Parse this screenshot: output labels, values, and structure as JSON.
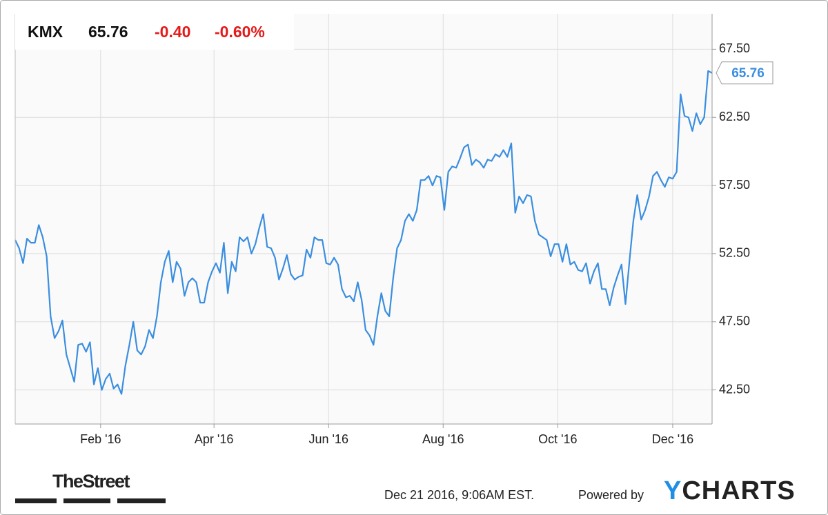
{
  "chart_data": {
    "type": "line",
    "header": {
      "ticker": "KMX",
      "price": "65.76",
      "change": "-0.40",
      "change_percent": "-0.60%"
    },
    "xlim": [
      0,
      177
    ],
    "xticks": [
      {
        "value": 21.7,
        "label": "Feb '16"
      },
      {
        "value": 50.5,
        "label": "Apr '16"
      },
      {
        "value": 79.6,
        "label": "Jun '16"
      },
      {
        "value": 108.7,
        "label": "Aug '16"
      },
      {
        "value": 137.8,
        "label": "Oct '16"
      },
      {
        "value": 167.0,
        "label": "Dec '16"
      }
    ],
    "ylim": [
      40,
      70.1
    ],
    "yticks": [
      {
        "value": 42.5,
        "label": "42.50"
      },
      {
        "value": 47.5,
        "label": "47.50"
      },
      {
        "value": 52.5,
        "label": "52.50"
      },
      {
        "value": 57.5,
        "label": "57.50"
      },
      {
        "value": 62.5,
        "label": "62.50"
      },
      {
        "value": 67.5,
        "label": "67.50"
      }
    ],
    "grid": true,
    "series": [
      {
        "name": "KMX",
        "color": "#3a8ee0",
        "values": [
          53.5,
          52.9,
          51.8,
          53.6,
          53.3,
          53.3,
          54.6,
          53.7,
          52.3,
          47.9,
          46.3,
          46.8,
          47.6,
          45.1,
          44.1,
          43.1,
          45.8,
          45.9,
          45.3,
          46.0,
          42.9,
          44.1,
          42.5,
          43.3,
          43.7,
          42.6,
          42.9,
          42.2,
          44.3,
          45.8,
          47.5,
          45.4,
          45.1,
          45.7,
          46.9,
          46.3,
          47.9,
          50.4,
          51.9,
          52.7,
          50.4,
          51.9,
          51.4,
          49.4,
          50.4,
          50.7,
          50.4,
          48.9,
          48.9,
          50.4,
          51.2,
          51.8,
          51.1,
          53.3,
          49.6,
          51.9,
          51.2,
          53.7,
          53.4,
          53.7,
          52.5,
          53.2,
          54.4,
          55.4,
          53.0,
          52.9,
          52.2,
          50.6,
          51.4,
          52.4,
          51.0,
          50.6,
          50.8,
          50.9,
          52.8,
          52.2,
          53.7,
          53.5,
          53.5,
          51.8,
          51.7,
          52.2,
          51.7,
          49.9,
          49.3,
          49.4,
          49.0,
          50.4,
          49.1,
          46.9,
          46.5,
          45.8,
          47.9,
          49.6,
          48.3,
          47.9,
          50.7,
          52.9,
          53.5,
          54.9,
          55.4,
          54.9,
          55.7,
          57.9,
          57.9,
          58.2,
          57.5,
          58.2,
          58.1,
          55.7,
          58.5,
          58.9,
          58.8,
          59.5,
          60.3,
          60.5,
          59.0,
          59.4,
          59.2,
          58.8,
          59.4,
          59.3,
          59.8,
          59.6,
          60.1,
          59.6,
          60.6,
          55.5,
          56.7,
          56.2,
          56.8,
          56.7,
          54.9,
          53.9,
          53.7,
          53.5,
          52.3,
          53.2,
          53.2,
          51.9,
          53.2,
          51.7,
          51.9,
          51.3,
          51.2,
          51.8,
          50.3,
          51.2,
          51.8,
          49.9,
          49.9,
          48.7,
          50.0,
          50.9,
          51.7,
          48.8,
          51.9,
          54.9,
          56.8,
          55.0,
          55.7,
          56.7,
          58.2,
          58.5,
          57.9,
          57.4,
          58.1,
          58.0,
          58.5,
          64.2,
          62.6,
          62.5,
          61.5,
          62.8,
          62.0,
          62.5,
          65.9,
          65.76
        ]
      }
    ],
    "footer": {
      "timestamp": "Dec 21 2016, 9:06AM EST.",
      "powered_by": "Powered by",
      "brand": "YCHARTS",
      "source": "TheStreet"
    }
  }
}
